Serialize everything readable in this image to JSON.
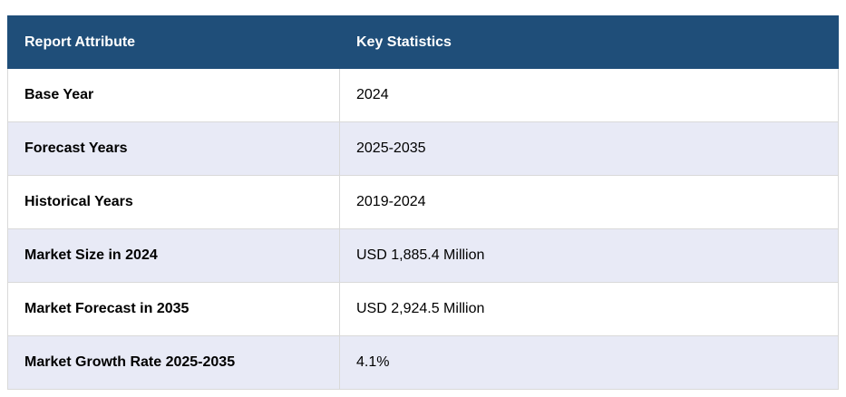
{
  "table": {
    "headers": [
      "Report Attribute",
      "Key Statistics"
    ],
    "rows": [
      {
        "attribute": "Base Year",
        "value": "2024"
      },
      {
        "attribute": "Forecast Years",
        "value": "2025-2035"
      },
      {
        "attribute": "Historical Years",
        "value": "2019-2024"
      },
      {
        "attribute": "Market Size in 2024",
        "value": "USD 1,885.4 Million"
      },
      {
        "attribute": "Market Forecast in 2035",
        "value": "USD 2,924.5 Million"
      },
      {
        "attribute": "Market Growth Rate 2025-2035",
        "value": "4.1%"
      }
    ],
    "colors": {
      "header_bg": "#1f4e79",
      "header_text": "#ffffff",
      "row_alt_bg": "#e8eaf6",
      "row_bg": "#ffffff"
    }
  }
}
